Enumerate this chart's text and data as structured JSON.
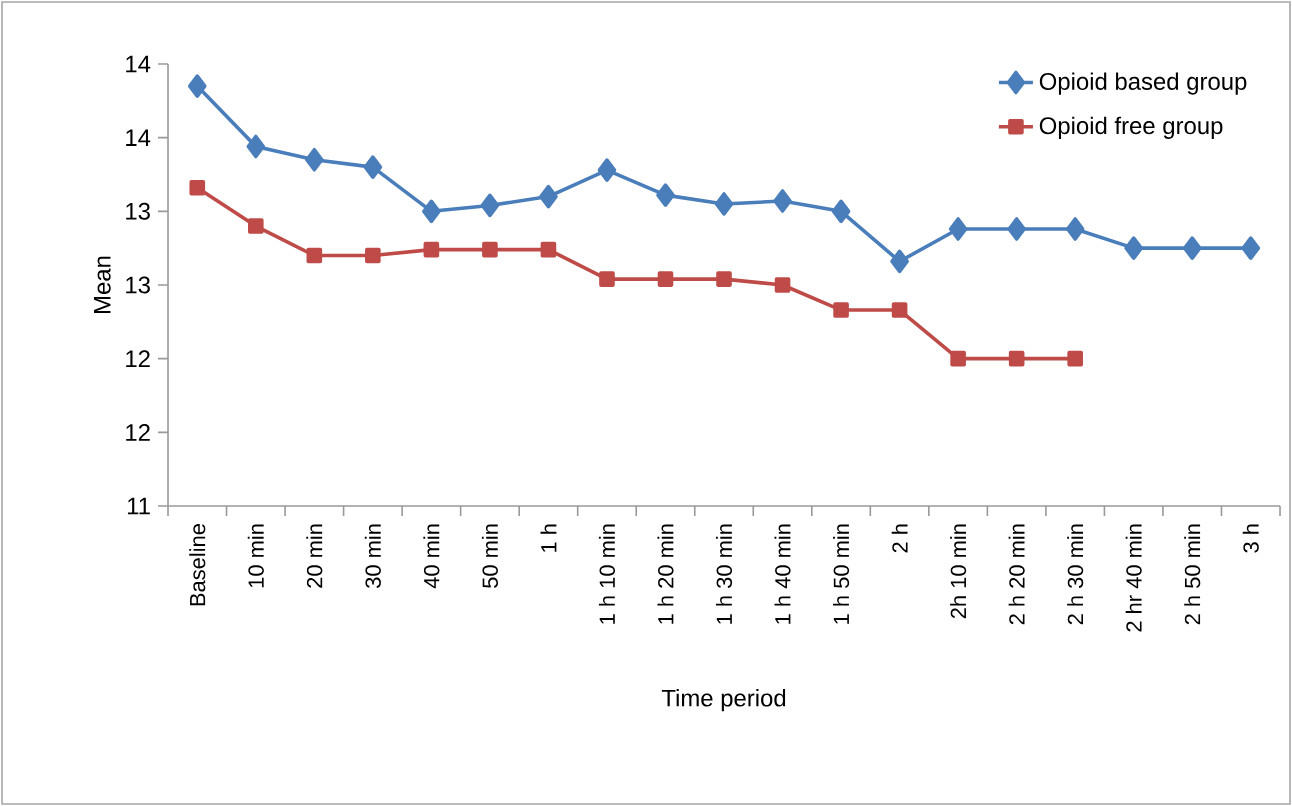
{
  "chart_data": {
    "type": "line",
    "xlabel": "Time period",
    "ylabel": "Mean",
    "categories": [
      "Baseline",
      "10 min",
      "20 min",
      "30 min",
      "40 min",
      "50 min",
      "1 h",
      "1 h 10 min",
      "1 h 20 min",
      "1 h 30 min",
      "1 h 40 min",
      "1 h 50 min",
      "2 h",
      "2h 10 min",
      "2 h 20 min",
      "2 h 30 min",
      "2 hr 40 min",
      "2 h 50 min",
      "3 h"
    ],
    "series": [
      {
        "name": "Opioid based group",
        "color": "#4a7ebb",
        "marker": "diamond",
        "values": [
          13.85,
          13.44,
          13.35,
          13.3,
          13.0,
          13.04,
          13.1,
          13.28,
          13.11,
          13.05,
          13.07,
          13.0,
          12.66,
          12.88,
          12.88,
          12.88,
          12.75,
          12.75,
          12.75
        ]
      },
      {
        "name": "Opioid free group",
        "color": "#be4b48",
        "marker": "square",
        "values": [
          13.16,
          12.9,
          12.7,
          12.7,
          12.74,
          12.74,
          12.74,
          12.54,
          12.54,
          12.54,
          12.5,
          12.33,
          12.33,
          12.0,
          12.0,
          12.0,
          null,
          null,
          null
        ]
      }
    ],
    "ylim": [
      11,
      14
    ],
    "yticks": [
      {
        "value": 11,
        "label": "11"
      },
      {
        "value": 11.5,
        "label": "12"
      },
      {
        "value": 12,
        "label": "12"
      },
      {
        "value": 12.5,
        "label": "13"
      },
      {
        "value": 13,
        "label": "13"
      },
      {
        "value": 13.5,
        "label": "14"
      },
      {
        "value": 14,
        "label": "14"
      }
    ],
    "legend": "top right",
    "grid": false,
    "line_style": "solid"
  }
}
